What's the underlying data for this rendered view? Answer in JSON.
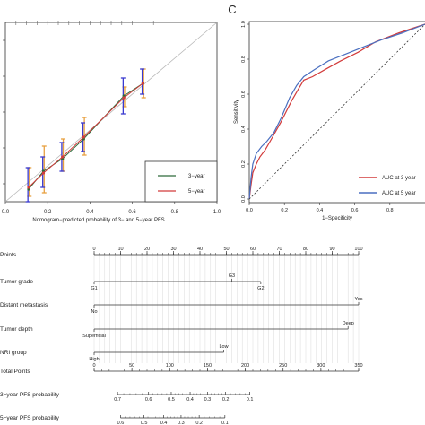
{
  "panel_c_letter": "C",
  "chart_data": [
    {
      "type": "line",
      "panel": "calibration",
      "xlabel": "Nomogram−predicted probability of 3− and 5−year  PFS",
      "ylabel": "",
      "xlim": [
        0,
        1.0
      ],
      "ylim": [
        0,
        1.0
      ],
      "x_ticks": [
        "0.0",
        "0.2",
        "0.4",
        "0.6",
        "0.8",
        "1.0"
      ],
      "legend_position": "bottom-right",
      "colors": {
        "3-year": "#2f6b3a",
        "5-year": "#d23b3b",
        "ideal": "#b8b8b8"
      },
      "series": [
        {
          "name": "3−year",
          "x": [
            0.11,
            0.18,
            0.27,
            0.37,
            0.56,
            0.65
          ],
          "y": [
            0.07,
            0.17,
            0.24,
            0.35,
            0.59,
            0.66
          ],
          "lower": [
            0.0,
            0.08,
            0.17,
            0.28,
            0.49,
            0.6
          ],
          "upper": [
            0.19,
            0.25,
            0.33,
            0.44,
            0.69,
            0.74
          ],
          "bar_color": "#3a3ad0"
        },
        {
          "name": "5−year",
          "x": [
            0.11,
            0.18,
            0.27,
            0.37,
            0.56,
            0.65
          ],
          "y": [
            0.08,
            0.16,
            0.25,
            0.36,
            0.58,
            0.66
          ],
          "lower": [
            0.03,
            0.05,
            0.17,
            0.26,
            0.53,
            0.58
          ],
          "upper": [
            0.19,
            0.31,
            0.35,
            0.47,
            0.64,
            0.74
          ],
          "bar_color": "#e8a040"
        }
      ]
    },
    {
      "type": "line",
      "panel": "roc",
      "xlabel": "1−Specificity",
      "ylabel": "Sensitivity",
      "xlim": [
        0,
        1.0
      ],
      "ylim": [
        0,
        1.0
      ],
      "x_ticks": [
        "0.0",
        "0.2",
        "0.4",
        "0.6",
        "0.8"
      ],
      "y_ticks": [
        "0.0",
        "0.2",
        "0.4",
        "0.6",
        "0.8",
        "1.0"
      ],
      "legend_position": "bottom-right",
      "series": [
        {
          "name": "AUC at 3 year",
          "color": "#d23b3b",
          "x": [
            0,
            0.01,
            0.02,
            0.04,
            0.06,
            0.09,
            0.13,
            0.18,
            0.24,
            0.28,
            0.31,
            0.36,
            0.43,
            0.52,
            0.62,
            0.72,
            0.85,
            1.0
          ],
          "y": [
            0,
            0.08,
            0.15,
            0.2,
            0.24,
            0.28,
            0.35,
            0.44,
            0.56,
            0.63,
            0.68,
            0.7,
            0.74,
            0.79,
            0.84,
            0.9,
            0.95,
            1.0
          ]
        },
        {
          "name": "AUC at 5 year",
          "color": "#4a6fc0",
          "x": [
            0,
            0.01,
            0.02,
            0.04,
            0.07,
            0.1,
            0.14,
            0.18,
            0.23,
            0.27,
            0.31,
            0.37,
            0.45,
            0.55,
            0.65,
            0.75,
            0.87,
            1.0
          ],
          "y": [
            0,
            0.12,
            0.2,
            0.26,
            0.3,
            0.33,
            0.38,
            0.46,
            0.58,
            0.65,
            0.7,
            0.74,
            0.79,
            0.83,
            0.87,
            0.91,
            0.95,
            1.0
          ]
        },
        {
          "name": "",
          "color": "#333333",
          "dashed": true,
          "x": [
            0,
            1
          ],
          "y": [
            0,
            1
          ]
        }
      ]
    }
  ],
  "nomogram": {
    "rows": [
      {
        "label": "Points",
        "type": "axis",
        "min": 0,
        "max": 100,
        "tick_step": 10,
        "minor_step": 2,
        "tick_labels": [
          "0",
          "10",
          "20",
          "30",
          "40",
          "50",
          "60",
          "70",
          "80",
          "90",
          "100"
        ]
      },
      {
        "label": "Tumor grade",
        "type": "cat",
        "cats": [
          {
            "text": "G1",
            "value": 0,
            "pos": "below"
          },
          {
            "text": "G3",
            "value": 52,
            "pos": "above"
          },
          {
            "text": "G2",
            "value": 63,
            "pos": "below"
          }
        ]
      },
      {
        "label": "Distant metastasis",
        "type": "cat",
        "cats": [
          {
            "text": "No",
            "value": 0,
            "pos": "below"
          },
          {
            "text": "Yes",
            "value": 100,
            "pos": "above"
          }
        ]
      },
      {
        "label": "Tumor depth",
        "type": "cat",
        "cats": [
          {
            "text": "Superficial",
            "value": 0,
            "pos": "below"
          },
          {
            "text": "Deep",
            "value": 96,
            "pos": "above"
          }
        ]
      },
      {
        "label": "NRI group",
        "type": "cat",
        "cats": [
          {
            "text": "High",
            "value": 0,
            "pos": "below"
          },
          {
            "text": "Low",
            "value": 49,
            "pos": "above"
          }
        ]
      },
      {
        "label": "Total Points",
        "type": "axis",
        "min": 0,
        "max": 350,
        "tick_step": 50,
        "minor_step": 10,
        "tick_labels": [
          "0",
          "50",
          "100",
          "150",
          "200",
          "250",
          "300",
          "350"
        ]
      },
      {
        "label": "3−year PFS probability",
        "type": "prob",
        "ticks": [
          {
            "text": "0.7",
            "pts": 31
          },
          {
            "text": "0.6",
            "pts": 72
          },
          {
            "text": "0.5",
            "pts": 102
          },
          {
            "text": "0.4",
            "pts": 127
          },
          {
            "text": "0.3",
            "pts": 150
          },
          {
            "text": "0.2",
            "pts": 174
          },
          {
            "text": "0.1",
            "pts": 206
          }
        ]
      },
      {
        "label": "5−year PFS probability",
        "type": "prob",
        "ticks": [
          {
            "text": "0.6",
            "pts": 35
          },
          {
            "text": "0.5",
            "pts": 66
          },
          {
            "text": "0.4",
            "pts": 92
          },
          {
            "text": "0.3",
            "pts": 115
          },
          {
            "text": "0.2",
            "pts": 139
          },
          {
            "text": "0.1",
            "pts": 173
          }
        ]
      }
    ]
  }
}
